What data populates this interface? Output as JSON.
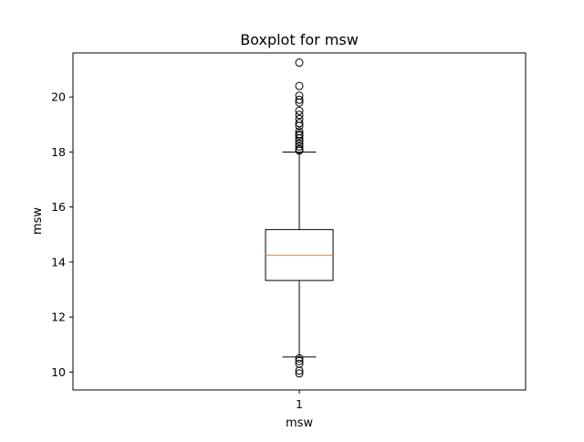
{
  "chart_data": {
    "type": "boxplot",
    "title": "Boxplot for msw",
    "xlabel": "msw",
    "ylabel": "msw",
    "categories": [
      "1"
    ],
    "ylim": [
      9.35,
      21.6
    ],
    "yticks": [
      10,
      12,
      14,
      16,
      18,
      20
    ],
    "ytick_labels": [
      "10",
      "12",
      "14",
      "16",
      "18",
      "20"
    ],
    "grid": false,
    "boxes": [
      {
        "category": "1",
        "whisker_low": 10.55,
        "q1": 13.33,
        "median": 14.25,
        "q3": 15.18,
        "whisker_high": 18.0,
        "outliers": [
          21.25,
          20.4,
          20.05,
          19.9,
          19.8,
          19.5,
          19.35,
          19.2,
          19.05,
          18.95,
          18.75,
          18.65,
          18.6,
          18.5,
          18.4,
          18.3,
          18.2,
          18.1,
          18.05,
          10.5,
          10.4,
          10.3,
          10.05,
          9.95
        ]
      }
    ],
    "colors": {
      "box": "#000000",
      "median": "#ff7f0e",
      "outlier": "#000000"
    }
  }
}
